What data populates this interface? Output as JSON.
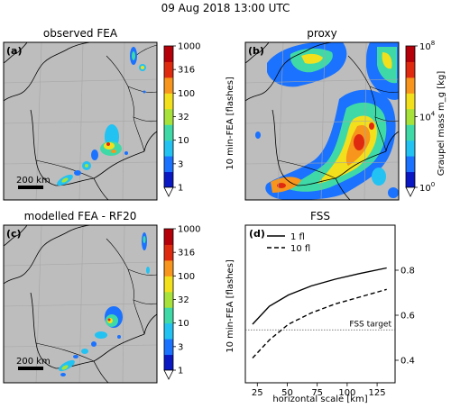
{
  "suptitle": "09 Aug 2018 13:00 UTC",
  "panels": {
    "a": {
      "title": "observed FEA",
      "tag": "(a)",
      "scalebar": "200 km"
    },
    "b": {
      "title": "proxy",
      "tag": "(b)"
    },
    "c": {
      "title": "modelled FEA - RF20",
      "tag": "(c)",
      "scalebar": "200 km"
    },
    "d": {
      "title": "FSS",
      "tag": "(d)"
    }
  },
  "colorbars": {
    "flash_top": {
      "label": "10 min-FEA [flashes]",
      "ticks": [
        "1",
        "3",
        "10",
        "32",
        "100",
        "316",
        "1000"
      ]
    },
    "graupel": {
      "label": "Graupel mass m_g [kg]",
      "ticks_base": "10",
      "ticks_exp": [
        "0",
        "4",
        "8"
      ]
    },
    "flash_bottom": {
      "label": "10 min-FEA [flashes]",
      "ticks": [
        "1",
        "3",
        "10",
        "32",
        "100",
        "316",
        "1000"
      ]
    }
  },
  "colors": {
    "map_bg": "#bdbdbd",
    "border": "#000000",
    "grid": "#a6a6a6",
    "cbar_bands": [
      "#0a18c4",
      "#1a72ff",
      "#22c2f2",
      "#3fd9a8",
      "#a6e23a",
      "#f2e01c",
      "#f7951c",
      "#e02a10",
      "#b5000a"
    ]
  },
  "chart_data": {
    "type": "line",
    "title": "FSS",
    "xlabel": "horizontal scale [km]",
    "ylabel": "",
    "xlim": [
      15,
      140
    ],
    "ylim": [
      0.3,
      1.0
    ],
    "xticks": [
      25,
      50,
      75,
      100,
      125
    ],
    "yticks": [
      0.4,
      0.6,
      0.8
    ],
    "x": [
      21,
      35,
      51,
      70,
      90,
      110,
      133
    ],
    "series": [
      {
        "name": "1 fl",
        "style": "solid",
        "values": [
          0.56,
          0.64,
          0.69,
          0.73,
          0.76,
          0.785,
          0.81
        ]
      },
      {
        "name": "10 fl",
        "style": "dashed",
        "values": [
          0.41,
          0.49,
          0.56,
          0.61,
          0.65,
          0.68,
          0.715
        ]
      }
    ],
    "target_line": {
      "label": "FSS target",
      "value": 0.535
    },
    "legend": "top-left"
  }
}
